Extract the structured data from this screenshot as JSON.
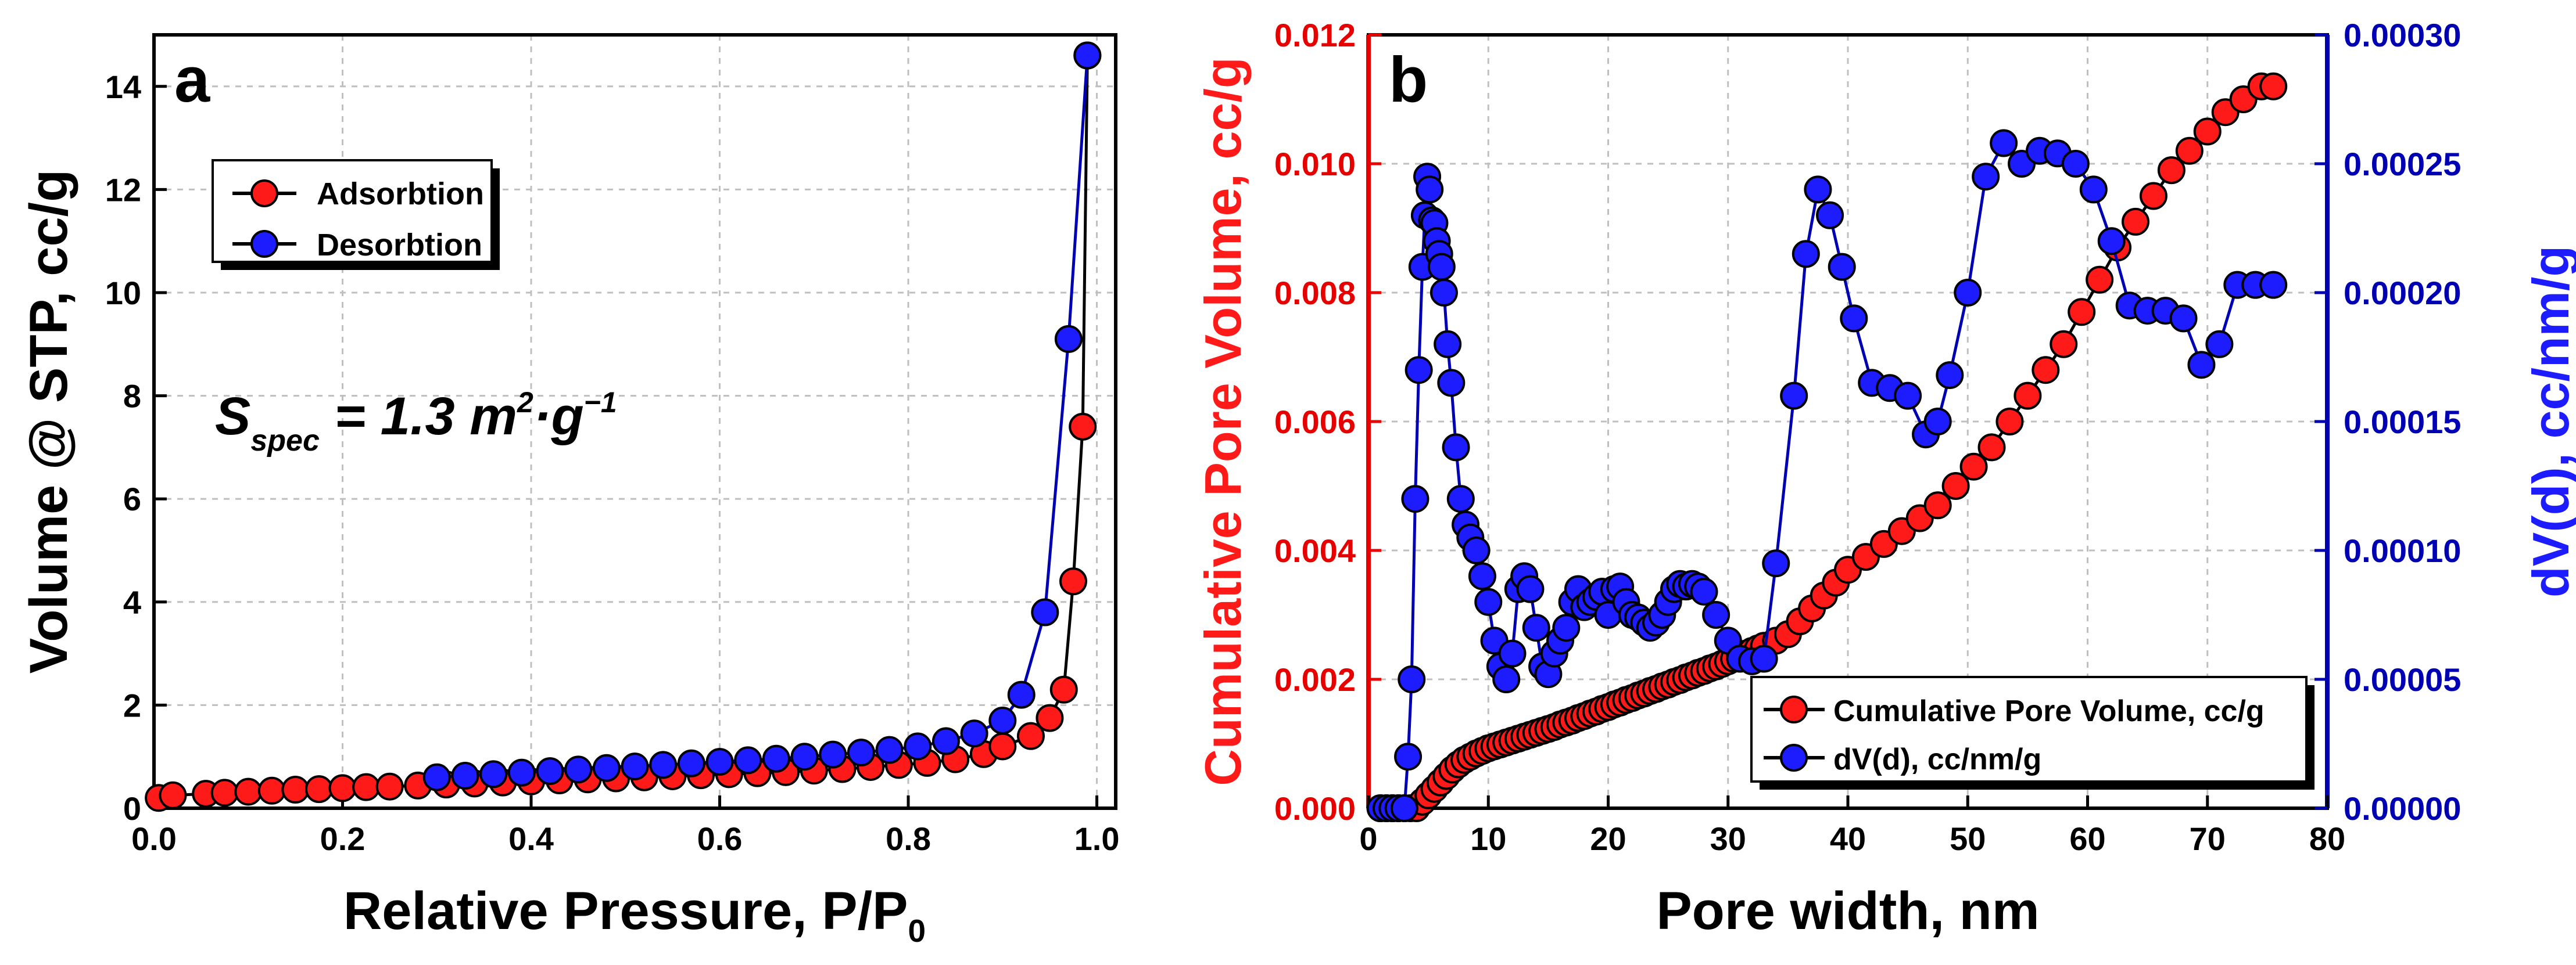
{
  "colors": {
    "red": "#ff1a1a",
    "blue": "#1c1cff",
    "axis_red": "#e60000",
    "axis_blue": "#0000b3",
    "grid": "#bfbfbf"
  },
  "chart_data": [
    {
      "panel": "a",
      "type": "scatter",
      "xlabel": "Relative Pressure, P/P",
      "xlabel_sub": "0",
      "ylabel": "Volume @ STP, cc/g",
      "xlim": [
        0.0,
        1.02
      ],
      "ylim": [
        0,
        15
      ],
      "xticks": [
        0.0,
        0.2,
        0.4,
        0.6,
        0.8,
        1.0
      ],
      "xtick_labels": [
        "0.0",
        "0.2",
        "0.4",
        "0.6",
        "0.8",
        "1.0"
      ],
      "yticks": [
        0,
        2,
        4,
        6,
        8,
        10,
        12,
        14
      ],
      "ytick_labels": [
        "0",
        "2",
        "4",
        "6",
        "8",
        "10",
        "12",
        "14"
      ],
      "grid": true,
      "legend_position": "upper-left",
      "annotation": {
        "main": "S",
        "sub": "spec",
        "mid": " = 1.3 m",
        "sup1": "2",
        "mid2": "·g",
        "sup2": "−1"
      },
      "series": [
        {
          "name": "Adsorbtion",
          "color": "#ff1a1a",
          "x": [
            0.005,
            0.02,
            0.055,
            0.075,
            0.1,
            0.125,
            0.15,
            0.175,
            0.2,
            0.225,
            0.25,
            0.28,
            0.31,
            0.34,
            0.37,
            0.4,
            0.43,
            0.46,
            0.49,
            0.52,
            0.55,
            0.58,
            0.61,
            0.64,
            0.67,
            0.7,
            0.73,
            0.76,
            0.79,
            0.82,
            0.85,
            0.88,
            0.9,
            0.93,
            0.95,
            0.965,
            0.975,
            0.985,
            0.99
          ],
          "y": [
            0.2,
            0.25,
            0.28,
            0.3,
            0.32,
            0.34,
            0.36,
            0.37,
            0.39,
            0.41,
            0.42,
            0.44,
            0.46,
            0.48,
            0.5,
            0.52,
            0.54,
            0.56,
            0.58,
            0.6,
            0.62,
            0.64,
            0.66,
            0.68,
            0.7,
            0.73,
            0.76,
            0.8,
            0.84,
            0.88,
            0.95,
            1.05,
            1.2,
            1.4,
            1.75,
            2.3,
            4.4,
            7.4,
            14.6
          ]
        },
        {
          "name": "Desorbtion",
          "color": "#1c1cff",
          "x": [
            0.3,
            0.33,
            0.36,
            0.39,
            0.42,
            0.45,
            0.48,
            0.51,
            0.54,
            0.57,
            0.6,
            0.63,
            0.66,
            0.69,
            0.72,
            0.75,
            0.78,
            0.81,
            0.84,
            0.87,
            0.9,
            0.92,
            0.945,
            0.97,
            0.99
          ],
          "y": [
            0.6,
            0.63,
            0.66,
            0.69,
            0.72,
            0.75,
            0.78,
            0.81,
            0.84,
            0.87,
            0.9,
            0.93,
            0.96,
            1.0,
            1.04,
            1.08,
            1.13,
            1.2,
            1.3,
            1.45,
            1.7,
            2.2,
            3.8,
            9.1,
            14.6
          ]
        }
      ]
    },
    {
      "panel": "b",
      "type": "scatter",
      "xlabel": "Pore width, nm",
      "ylabel_left": "Cumulative Pore Volume, cc/g",
      "ylabel_right": "dV(d), cc/nm/g",
      "xlim": [
        0,
        80
      ],
      "ylim_left": [
        0.0,
        0.012
      ],
      "ylim_right": [
        0.0,
        0.0003
      ],
      "xticks": [
        0,
        10,
        20,
        30,
        40,
        50,
        60,
        70,
        80
      ],
      "xtick_labels": [
        "0",
        "10",
        "20",
        "30",
        "40",
        "50",
        "60",
        "70",
        "80"
      ],
      "yticks_left": [
        0.0,
        0.002,
        0.004,
        0.006,
        0.008,
        0.01,
        0.012
      ],
      "ytick_labels_left": [
        "0.000",
        "0.002",
        "0.004",
        "0.006",
        "0.008",
        "0.010",
        "0.012"
      ],
      "yticks_right": [
        0.0,
        5e-05,
        0.0001,
        0.00015,
        0.0002,
        0.00025,
        0.0003
      ],
      "ytick_labels_right": [
        "0.00000",
        "0.00005",
        "0.00010",
        "0.00015",
        "0.00020",
        "0.00025",
        "0.00030"
      ],
      "grid": true,
      "legend_position": "lower-right",
      "series": [
        {
          "name": "Cumulative Pore Volume, cc/g",
          "axis": "left",
          "color": "#ff1a1a",
          "x": [
            1,
            1.5,
            2,
            2.5,
            3,
            3.5,
            4,
            4.5,
            5,
            5.5,
            6,
            6.5,
            7,
            7.5,
            8,
            8.5,
            9,
            9.5,
            10,
            10.5,
            11,
            11.5,
            12,
            12.5,
            13,
            13.5,
            14,
            14.5,
            15,
            15.5,
            16,
            16.5,
            17,
            17.5,
            18,
            18.5,
            19,
            19.5,
            20,
            20.5,
            21,
            21.5,
            22,
            22.5,
            23,
            23.5,
            24,
            24.5,
            25,
            25.5,
            26,
            26.5,
            27,
            27.5,
            28,
            28.5,
            29,
            29.5,
            30,
            30.5,
            31,
            31.5,
            32,
            32.5,
            33,
            34,
            35,
            36,
            37,
            38,
            39,
            40,
            41.5,
            43,
            44.5,
            46,
            47.5,
            49,
            50.5,
            52,
            53.5,
            55,
            56.5,
            58,
            59.5,
            61,
            62.5,
            64,
            65.5,
            67,
            68.5,
            70,
            71.5,
            73,
            74.5,
            75.5
          ],
          "y": [
            0.0,
            0.0,
            0.0,
            0.0,
            0.0,
            0.0,
            0.0,
            0.0001,
            0.0002,
            0.0003,
            0.0004,
            0.0005,
            0.0006,
            0.00068,
            0.00075,
            0.0008,
            0.00085,
            0.00089,
            0.00093,
            0.00096,
            0.00099,
            0.00102,
            0.00105,
            0.00108,
            0.00111,
            0.00114,
            0.00117,
            0.0012,
            0.00123,
            0.00126,
            0.0013,
            0.00133,
            0.00136,
            0.0014,
            0.00143,
            0.00147,
            0.0015,
            0.00154,
            0.00157,
            0.00161,
            0.00164,
            0.00168,
            0.00171,
            0.00175,
            0.00178,
            0.00182,
            0.00185,
            0.00189,
            0.00192,
            0.00196,
            0.00199,
            0.00203,
            0.00206,
            0.0021,
            0.00213,
            0.00217,
            0.0022,
            0.00224,
            0.00228,
            0.00232,
            0.00236,
            0.0024,
            0.00244,
            0.00248,
            0.00252,
            0.0026,
            0.0027,
            0.0029,
            0.0031,
            0.0033,
            0.0035,
            0.0037,
            0.0039,
            0.0041,
            0.0043,
            0.0045,
            0.0047,
            0.005,
            0.0053,
            0.0056,
            0.006,
            0.0064,
            0.0068,
            0.0072,
            0.0077,
            0.0082,
            0.0087,
            0.0091,
            0.0095,
            0.0099,
            0.0102,
            0.0105,
            0.0108,
            0.011,
            0.0112,
            0.0112
          ]
        },
        {
          "name": "dV(d), cc/nm/g",
          "axis": "right",
          "color": "#1c1cff",
          "x": [
            1,
            1.5,
            2,
            2.5,
            3,
            3.3,
            3.6,
            3.9,
            4.2,
            4.5,
            4.7,
            4.9,
            5.1,
            5.3,
            5.5,
            5.7,
            5.9,
            6.1,
            6.3,
            6.6,
            6.9,
            7.3,
            7.7,
            8.1,
            8.5,
            9,
            9.5,
            10,
            10.5,
            11,
            11.5,
            12,
            12.5,
            13,
            13.5,
            14,
            14.5,
            15,
            15.5,
            16,
            16.5,
            17,
            17.5,
            18,
            18.5,
            19,
            19.5,
            20,
            20.5,
            21,
            21.5,
            22,
            22.5,
            23,
            23.5,
            24,
            24.5,
            25,
            25.5,
            26,
            26.5,
            27,
            27.5,
            28,
            29,
            30,
            31,
            32,
            33,
            34,
            35.5,
            36.5,
            37.5,
            38.5,
            39.5,
            40.5,
            42,
            43.5,
            45,
            46.5,
            47.5,
            48.5,
            50,
            51.5,
            53,
            54.5,
            56,
            57.5,
            59,
            60.5,
            62,
            63.5,
            65,
            66.5,
            68,
            69.5,
            71,
            72.5,
            74,
            75.5
          ],
          "y": [
            0.0,
            0.0,
            0.0,
            0.0,
            0.0,
            2e-05,
            5e-05,
            0.00012,
            0.00017,
            0.00021,
            0.00023,
            0.000245,
            0.00024,
            0.000228,
            0.000227,
            0.00022,
            0.000215,
            0.00021,
            0.0002,
            0.00018,
            0.000165,
            0.00014,
            0.00012,
            0.00011,
            0.000105,
            0.0001,
            9e-05,
            8e-05,
            6.5e-05,
            5.5e-05,
            5e-05,
            6e-05,
            8.5e-05,
            9e-05,
            8.5e-05,
            7e-05,
            5.5e-05,
            5.2e-05,
            6e-05,
            6.5e-05,
            7e-05,
            8e-05,
            8.5e-05,
            7.8e-05,
            8e-05,
            8.2e-05,
            8.4e-05,
            7.5e-05,
            8.5e-05,
            8.6e-05,
            8e-05,
            7.5e-05,
            7.4e-05,
            7.2e-05,
            7e-05,
            7.2e-05,
            7.5e-05,
            8e-05,
            8.5e-05,
            8.7e-05,
            8.6e-05,
            8.7e-05,
            8.6e-05,
            8.4e-05,
            7.5e-05,
            6.5e-05,
            5.8e-05,
            5.7e-05,
            5.8e-05,
            9.5e-05,
            0.00016,
            0.000215,
            0.00024,
            0.00023,
            0.00021,
            0.00019,
            0.000165,
            0.000163,
            0.00016,
            0.000145,
            0.00015,
            0.000168,
            0.0002,
            0.000245,
            0.000258,
            0.00025,
            0.000255,
            0.000254,
            0.00025,
            0.00024,
            0.00022,
            0.000195,
            0.000193,
            0.000193,
            0.00019,
            0.000172,
            0.00018,
            0.000203,
            0.000203,
            0.000203
          ]
        }
      ]
    }
  ]
}
